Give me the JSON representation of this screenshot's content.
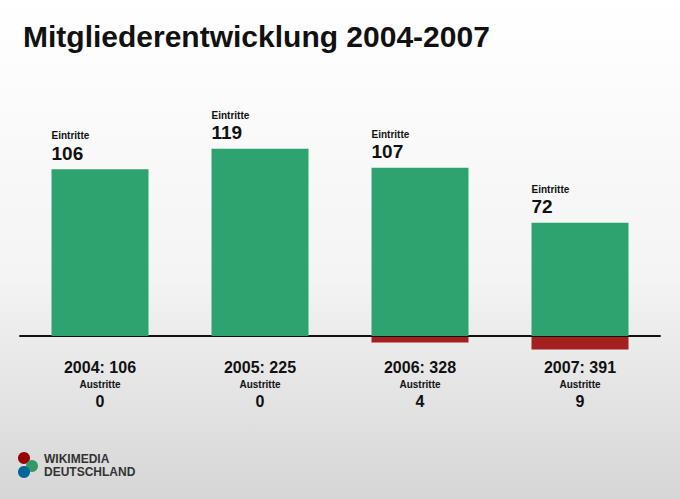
{
  "chart_data": {
    "type": "bar",
    "title": "Mitgliederentwicklung 2004-2007",
    "categories": [
      "2004: 106",
      "2005: 225",
      "2006: 328",
      "2007: 391"
    ],
    "series": [
      {
        "name": "Eintritte",
        "color": "#2ea36f",
        "values": [
          106,
          119,
          107,
          72
        ]
      },
      {
        "name": "Austritte",
        "color": "#a3201f",
        "values": [
          0,
          0,
          4,
          9
        ],
        "axis": "y2"
      }
    ],
    "ylim": [
      0,
      150
    ],
    "yticks": [
      0,
      150
    ],
    "y2lim": [
      0,
      10
    ],
    "y2ticks": [
      0,
      10
    ],
    "grid": false,
    "data_labels": true,
    "tick_labels": "x",
    "annotations": [
      "WIKIMEDIA",
      "DEUTSCHLAND"
    ]
  }
}
